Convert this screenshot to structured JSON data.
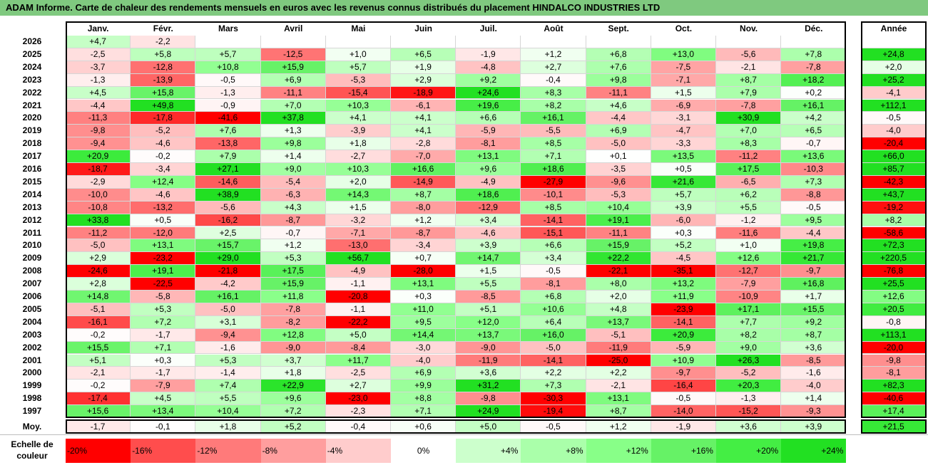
{
  "title": "ADAM Informe. Carte de chaleur des rendements mensuels en euros avec les revenus connus distribués du placement HINDALCO INDUSTRIES LTD",
  "chart_data": {
    "type": "heatmap",
    "columns": [
      "Janv.",
      "Févr.",
      "Mars",
      "Avril",
      "Mai",
      "Juin",
      "Juil.",
      "Août",
      "Sept.",
      "Oct.",
      "Nov.",
      "Déc."
    ],
    "year_header": "Année",
    "rows": [
      {
        "year": "2026",
        "values": [
          "+4,7",
          "-2,2",
          "",
          "",
          "",
          "",
          "",
          "",
          "",
          "",
          "",
          ""
        ],
        "annual": ""
      },
      {
        "year": "2025",
        "values": [
          "-2,5",
          "+5,8",
          "+5,7",
          "-12,5",
          "+1,0",
          "+6,5",
          "-1,9",
          "+1,2",
          "+6,8",
          "+13,0",
          "-5,6",
          "+7,8"
        ],
        "annual": "+24,8"
      },
      {
        "year": "2024",
        "values": [
          "-3,7",
          "-12,8",
          "+10,8",
          "+15,9",
          "+5,7",
          "+1,9",
          "-4,8",
          "+2,7",
          "+7,6",
          "-7,5",
          "-2,1",
          "-7,8"
        ],
        "annual": "+2,0"
      },
      {
        "year": "2023",
        "values": [
          "-1,3",
          "-13,9",
          "-0,5",
          "+6,9",
          "-5,3",
          "+2,9",
          "+9,2",
          "-0,4",
          "+9,8",
          "-7,1",
          "+8,7",
          "+18,2"
        ],
        "annual": "+25,2"
      },
      {
        "year": "2022",
        "values": [
          "+4,5",
          "+15,8",
          "-1,3",
          "-11,1",
          "-15,4",
          "-18,9",
          "+24,6",
          "+8,3",
          "-11,1",
          "+1,5",
          "+7,9",
          "+0,2"
        ],
        "annual": "-4,1"
      },
      {
        "year": "2021",
        "values": [
          "-4,4",
          "+49,8",
          "-0,9",
          "+7,0",
          "+10,3",
          "-6,1",
          "+19,6",
          "+8,2",
          "+4,6",
          "-6,9",
          "-7,8",
          "+16,1"
        ],
        "annual": "+112,1"
      },
      {
        "year": "2020",
        "values": [
          "-11,3",
          "-17,8",
          "-41,6",
          "+37,8",
          "+4,1",
          "+4,1",
          "+6,6",
          "+16,1",
          "-4,4",
          "-3,1",
          "+30,9",
          "+4,2"
        ],
        "annual": "-0,5"
      },
      {
        "year": "2019",
        "values": [
          "-9,8",
          "-5,2",
          "+7,6",
          "+1,3",
          "-3,9",
          "+4,1",
          "-5,9",
          "-5,5",
          "+6,9",
          "-4,7",
          "+7,0",
          "+6,5"
        ],
        "annual": "-4,0"
      },
      {
        "year": "2018",
        "values": [
          "-9,4",
          "-4,6",
          "-13,8",
          "+9,8",
          "+1,8",
          "-2,8",
          "-8,1",
          "+8,5",
          "-5,0",
          "-3,3",
          "+8,3",
          "-0,7"
        ],
        "annual": "-20,4"
      },
      {
        "year": "2017",
        "values": [
          "+20,9",
          "-0,2",
          "+7,9",
          "+1,4",
          "-2,7",
          "-7,0",
          "+13,1",
          "+7,1",
          "+0,1",
          "+13,5",
          "-11,2",
          "+13,6"
        ],
        "annual": "+66,0"
      },
      {
        "year": "2016",
        "values": [
          "-18,7",
          "-3,4",
          "+27,1",
          "+9,0",
          "+10,3",
          "+16,6",
          "+9,6",
          "+18,6",
          "-3,5",
          "+0,5",
          "+17,5",
          "-10,3"
        ],
        "annual": "+85,7"
      },
      {
        "year": "2015",
        "values": [
          "-2,9",
          "+12,4",
          "-14,6",
          "-5,4",
          "+2,0",
          "-14,9",
          "-4,9",
          "-27,9",
          "-9,6",
          "+21,6",
          "-6,5",
          "+7,3"
        ],
        "annual": "-42,3"
      },
      {
        "year": "2014",
        "values": [
          "-10,0",
          "-4,6",
          "+38,9",
          "-6,3",
          "+14,3",
          "+8,7",
          "+18,6",
          "-10,1",
          "-5,3",
          "+5,7",
          "+6,2",
          "-8,8"
        ],
        "annual": "+43,7"
      },
      {
        "year": "2013",
        "values": [
          "-10,8",
          "-13,2",
          "-5,6",
          "+4,3",
          "+1,5",
          "-8,0",
          "-12,9",
          "+8,5",
          "+10,4",
          "+3,9",
          "+5,5",
          "-0,5"
        ],
        "annual": "-19,2"
      },
      {
        "year": "2012",
        "values": [
          "+33,8",
          "+0,5",
          "-16,2",
          "-8,7",
          "-3,2",
          "+1,2",
          "+3,4",
          "-14,1",
          "+19,1",
          "-6,0",
          "-1,2",
          "+9,5"
        ],
        "annual": "+8,2"
      },
      {
        "year": "2011",
        "values": [
          "-11,2",
          "-12,0",
          "+2,5",
          "-0,7",
          "-7,1",
          "-8,7",
          "-4,6",
          "-15,1",
          "-11,1",
          "+0,3",
          "-11,6",
          "-4,4"
        ],
        "annual": "-58,6"
      },
      {
        "year": "2010",
        "values": [
          "-5,0",
          "+13,1",
          "+15,7",
          "+1,2",
          "-13,0",
          "-3,4",
          "+3,9",
          "+6,6",
          "+15,9",
          "+5,2",
          "+1,0",
          "+19,8"
        ],
        "annual": "+72,3"
      },
      {
        "year": "2009",
        "values": [
          "+2,9",
          "-23,2",
          "+29,0",
          "+5,3",
          "+56,7",
          "+0,7",
          "+14,7",
          "+3,4",
          "+22,2",
          "-4,5",
          "+12,6",
          "+21,7"
        ],
        "annual": "+220,5"
      },
      {
        "year": "2008",
        "values": [
          "-24,6",
          "+19,1",
          "-21,8",
          "+17,5",
          "-4,9",
          "-28,0",
          "+1,5",
          "-0,5",
          "-22,1",
          "-35,1",
          "-12,7",
          "-9,7"
        ],
        "annual": "-76,8"
      },
      {
        "year": "2007",
        "values": [
          "+2,8",
          "-22,5",
          "-4,2",
          "+15,9",
          "-1,1",
          "+13,1",
          "+5,5",
          "-8,1",
          "+8,0",
          "+13,2",
          "-7,9",
          "+16,8"
        ],
        "annual": "+25,5"
      },
      {
        "year": "2006",
        "values": [
          "+14,8",
          "-5,8",
          "+16,1",
          "+11,8",
          "-20,8",
          "+0,3",
          "-8,5",
          "+6,8",
          "+2,0",
          "+11,9",
          "-10,9",
          "+1,7"
        ],
        "annual": "+12,6"
      },
      {
        "year": "2005",
        "values": [
          "-5,1",
          "+5,3",
          "-5,0",
          "-7,8",
          "-1,1",
          "+11,0",
          "+5,1",
          "+10,6",
          "+4,8",
          "-23,9",
          "+17,1",
          "+15,5"
        ],
        "annual": "+20,5"
      },
      {
        "year": "2004",
        "values": [
          "-16,1",
          "+7,2",
          "+3,1",
          "-8,2",
          "-22,2",
          "+9,5",
          "+12,0",
          "+6,4",
          "+13,7",
          "-14,1",
          "+7,7",
          "+9,2"
        ],
        "annual": "-0,8"
      },
      {
        "year": "2003",
        "values": [
          "-0,2",
          "-1,7",
          "-9,4",
          "+12,8",
          "+5,0",
          "+14,4",
          "+13,7",
          "+16,0",
          "-5,1",
          "+20,9",
          "+8,2",
          "+8,7"
        ],
        "annual": "+113,1"
      },
      {
        "year": "2002",
        "values": [
          "+15,5",
          "+7,1",
          "-1,6",
          "-9,0",
          "-8,4",
          "-3,0",
          "-9,0",
          "-5,0",
          "-11,9",
          "-5,9",
          "+9,0",
          "+3,6"
        ],
        "annual": "-20,0"
      },
      {
        "year": "2001",
        "values": [
          "+5,1",
          "+0,3",
          "+5,3",
          "+3,7",
          "+11,7",
          "-4,0",
          "-11,9",
          "-14,1",
          "-25,0",
          "+10,9",
          "+26,3",
          "-8,5"
        ],
        "annual": "-9,8"
      },
      {
        "year": "2000",
        "values": [
          "-2,1",
          "-1,7",
          "-1,4",
          "+1,8",
          "-2,5",
          "+6,9",
          "+3,6",
          "+2,2",
          "+2,2",
          "-9,7",
          "-5,2",
          "-1,6"
        ],
        "annual": "-8,1"
      },
      {
        "year": "1999",
        "values": [
          "-0,2",
          "-7,9",
          "+7,4",
          "+22,9",
          "+2,7",
          "+9,9",
          "+31,2",
          "+7,3",
          "-2,1",
          "-16,4",
          "+20,3",
          "-4,0"
        ],
        "annual": "+82,3"
      },
      {
        "year": "1998",
        "values": [
          "-17,4",
          "+4,5",
          "+5,5",
          "+9,6",
          "-23,0",
          "+8,8",
          "-9,8",
          "-30,3",
          "+13,1",
          "-0,5",
          "-1,3",
          "+1,4"
        ],
        "annual": "-40,6"
      },
      {
        "year": "1997",
        "values": [
          "+15,6",
          "+13,4",
          "+10,4",
          "+7,2",
          "-2,3",
          "+7,1",
          "+24,9",
          "-19,4",
          "+8,7",
          "-14,0",
          "-15,2",
          "-9,3"
        ],
        "annual": "+17,4"
      }
    ],
    "average": {
      "label": "Moy.",
      "values": [
        "-1,7",
        "-0,1",
        "+1,8",
        "+5,2",
        "-0,4",
        "+0,6",
        "+5,0",
        "-0,5",
        "+1,2",
        "-1,9",
        "+3,6",
        "+3,9"
      ],
      "annual": "+21,5"
    },
    "scale": {
      "label": "Echelle de couleur",
      "stops": [
        {
          "label": "-20%",
          "value": -20,
          "color": "#ff0000"
        },
        {
          "label": "-16%",
          "value": -16,
          "color": "#ff4d4d"
        },
        {
          "label": "-12%",
          "value": -12,
          "color": "#ff7a7a"
        },
        {
          "label": "-8%",
          "value": -8,
          "color": "#ff9e9e"
        },
        {
          "label": "-4%",
          "value": -4,
          "color": "#ffcccc"
        },
        {
          "label": "0%",
          "value": 0,
          "color": "#ffffff"
        },
        {
          "label": "+4%",
          "value": 4,
          "color": "#ccffcc"
        },
        {
          "label": "+8%",
          "value": 8,
          "color": "#aaffaa"
        },
        {
          "label": "+12%",
          "value": 12,
          "color": "#88ff88"
        },
        {
          "label": "+16%",
          "value": 16,
          "color": "#66f266"
        },
        {
          "label": "+20%",
          "value": 20,
          "color": "#44ee44"
        },
        {
          "label": "+24%",
          "value": 24,
          "color": "#22e022"
        }
      ]
    }
  }
}
